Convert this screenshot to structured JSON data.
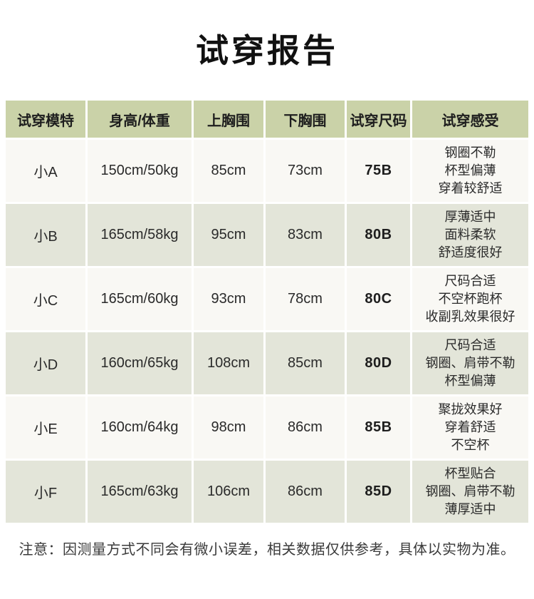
{
  "page": {
    "title": "试穿报告",
    "note": "注意：因测量方式不同会有微小误差，相关数据仅供参考，具体以实物为准。"
  },
  "colors": {
    "header_bg": "#cad2a8",
    "row_even_bg": "#e3e5d9",
    "row_odd_bg": "#f9f8f4",
    "gap": "#ffffff",
    "text": "#2a2a2a"
  },
  "table": {
    "columns": [
      "试穿模特",
      "身高/体重",
      "上胸围",
      "下胸围",
      "试穿尺码",
      "试穿感受"
    ],
    "rows": [
      {
        "model": "小A",
        "height_weight": "150cm/50kg",
        "upper_bust": "85cm",
        "lower_bust": "73cm",
        "size": "75B",
        "feel": [
          "钢圈不勒",
          "杯型偏薄",
          "穿着较舒适"
        ]
      },
      {
        "model": "小B",
        "height_weight": "165cm/58kg",
        "upper_bust": "95cm",
        "lower_bust": "83cm",
        "size": "80B",
        "feel": [
          "厚薄适中",
          "面料柔软",
          "舒适度很好"
        ]
      },
      {
        "model": "小C",
        "height_weight": "165cm/60kg",
        "upper_bust": "93cm",
        "lower_bust": "78cm",
        "size": "80C",
        "feel": [
          "尺码合适",
          "不空杯跑杯",
          "收副乳效果很好"
        ]
      },
      {
        "model": "小D",
        "height_weight": "160cm/65kg",
        "upper_bust": "108cm",
        "lower_bust": "85cm",
        "size": "80D",
        "feel": [
          "尺码合适",
          "钢圈、肩带不勒",
          "杯型偏薄"
        ]
      },
      {
        "model": "小E",
        "height_weight": "160cm/64kg",
        "upper_bust": "98cm",
        "lower_bust": "86cm",
        "size": "85B",
        "feel": [
          "聚拢效果好",
          "穿着舒适",
          "不空杯"
        ]
      },
      {
        "model": "小F",
        "height_weight": "165cm/63kg",
        "upper_bust": "106cm",
        "lower_bust": "86cm",
        "size": "85D",
        "feel": [
          "杯型贴合",
          "钢圈、肩带不勒",
          "薄厚适中"
        ]
      }
    ]
  }
}
